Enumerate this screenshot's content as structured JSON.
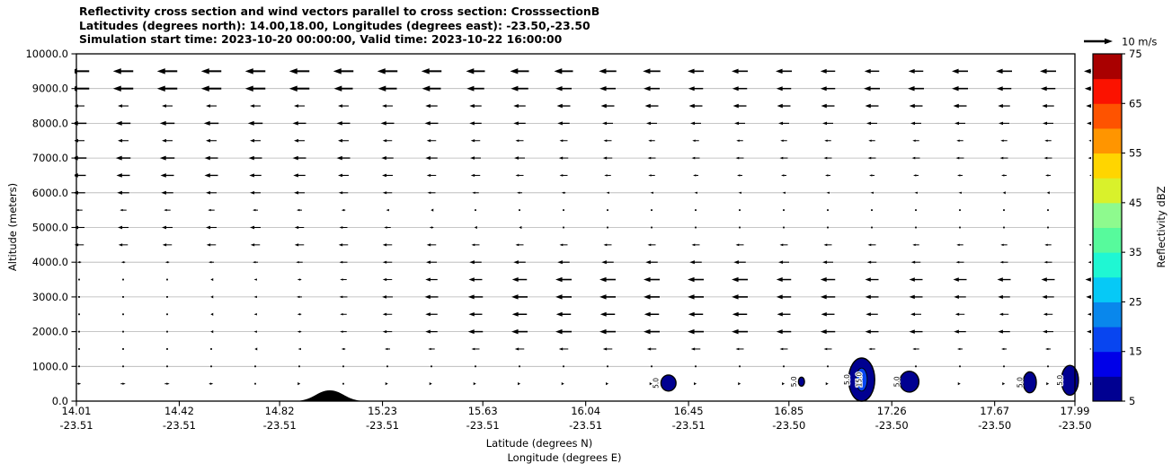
{
  "title": {
    "line1": "Reflectivity cross section and wind vectors parallel to cross section: CrosssectionB",
    "line2": "Latitudes (degrees north): 14.00,18.00, Longitudes (degrees east): -23.50,-23.50",
    "line3": "Simulation start time: 2023-10-20 00:00:00, Valid time: 2023-10-22 16:00:00"
  },
  "axes": {
    "ylabel": "Altitude (meters)",
    "xlabel_line1": "Latitude (degrees N)",
    "xlabel_line2": "Longitude (degrees E)",
    "y_ticks": [
      "0.0",
      "1000.0",
      "2000.0",
      "3000.0",
      "4000.0",
      "5000.0",
      "6000.0",
      "7000.0",
      "8000.0",
      "9000.0",
      "10000.0"
    ],
    "x_ticks": [
      {
        "lat": "14.01",
        "lon": "-23.51"
      },
      {
        "lat": "14.42",
        "lon": "-23.51"
      },
      {
        "lat": "14.82",
        "lon": "-23.51"
      },
      {
        "lat": "15.23",
        "lon": "-23.51"
      },
      {
        "lat": "15.63",
        "lon": "-23.51"
      },
      {
        "lat": "16.04",
        "lon": "-23.51"
      },
      {
        "lat": "16.45",
        "lon": "-23.51"
      },
      {
        "lat": "16.85",
        "lon": "-23.50"
      },
      {
        "lat": "17.26",
        "lon": "-23.50"
      },
      {
        "lat": "17.67",
        "lon": "-23.50"
      },
      {
        "lat": "17.99",
        "lon": "-23.50"
      }
    ]
  },
  "quiver_key": {
    "label": "10 m/s",
    "speed_ms": 10
  },
  "colorbar": {
    "label": "Reflectivity dBZ",
    "tick_values": [
      5,
      15,
      25,
      35,
      45,
      55,
      65,
      75
    ],
    "level_min": 5,
    "level_max": 75,
    "level_step": 5,
    "colors_low_to_high": [
      "#000091",
      "#0000e8",
      "#0845f0",
      "#0987ec",
      "#06c9f6",
      "#1ff7d3",
      "#57fa9c",
      "#8efa8e",
      "#d9f12b",
      "#ffd500",
      "#ff9500",
      "#fe5300",
      "#fb1200",
      "#a90000"
    ]
  },
  "chart_data": {
    "type": "quiver+contour vertical cross-section",
    "x_range_lat": [
      14.01,
      17.99
    ],
    "y_range_m": [
      0,
      10000
    ],
    "grid_interval_m": 1000,
    "wind_vectors": {
      "pixels_per_ms": 3,
      "altitudes_m": [
        9500,
        9000,
        8500,
        8000,
        7500,
        7000,
        6500,
        6000,
        5500,
        5000,
        4500,
        4000,
        3500,
        3000,
        2500,
        2000,
        1500,
        1000,
        500
      ],
      "u_ms": [
        [
          -7.5,
          -7.5,
          -7.5,
          -7.5,
          -7.5,
          -7.5,
          -7.5,
          -7.5,
          -7.5,
          -7,
          -7,
          -7,
          -6.5,
          -6.5,
          -6,
          -6,
          -6,
          -5.5,
          -5.5,
          -5.5,
          -6,
          -6,
          -6,
          -6
        ],
        [
          -7.5,
          -7.5,
          -7.5,
          -7.5,
          -7.5,
          -7.5,
          -7,
          -7,
          -7,
          -6.5,
          -6.5,
          -6,
          -6,
          -6,
          -5.5,
          -5.5,
          -5.5,
          -5.5,
          -6,
          -6,
          -6,
          -5.5,
          -5.5,
          -5.5
        ],
        [
          -4,
          -4,
          -4,
          -4,
          -4,
          -4,
          -4,
          -4,
          -4.5,
          -4.5,
          -4.5,
          -5,
          -5,
          -5,
          -5,
          -5,
          -5,
          -5,
          -5,
          -5,
          -5,
          -4.5,
          -4.5,
          -4.5
        ],
        [
          -5.5,
          -5.5,
          -5.5,
          -5.5,
          -5.5,
          -5,
          -5,
          -5,
          -5,
          -4.5,
          -4.5,
          -4.5,
          -4,
          -4,
          -4,
          -4,
          -4,
          -4,
          -4,
          -4,
          -4,
          -4,
          -4,
          -4
        ],
        [
          -4,
          -4,
          -4,
          -4,
          -4,
          -4,
          -4,
          -3.5,
          -3.5,
          -3.5,
          -3,
          -3,
          -3,
          -2.5,
          -2.5,
          -2.5,
          -2.5,
          -2.5,
          -2.5,
          -2.5,
          -2.5,
          -2.5,
          -2.5,
          -2.5
        ],
        [
          -5.5,
          -5.5,
          -5.5,
          -5,
          -5,
          -5,
          -5,
          -4.5,
          -4.5,
          -4,
          -4,
          -3.5,
          -3.5,
          -3,
          -3,
          -3,
          -3,
          -3,
          -3,
          -3,
          -3,
          -3,
          -3,
          -3
        ],
        [
          -5,
          -5,
          -5,
          -5,
          -4.5,
          -4.5,
          -4,
          -4,
          -3.5,
          -3.5,
          -3,
          -3,
          -2.5,
          -2.5,
          -2,
          -2,
          -2,
          -2,
          -2,
          -2,
          -2,
          -2,
          -2,
          -2
        ],
        [
          -4.5,
          -4.5,
          -4.5,
          -4,
          -4,
          -4,
          -3.5,
          -3.5,
          -3,
          -2.5,
          -2,
          -1.5,
          -1,
          -1,
          -1,
          -1,
          -1,
          -1,
          -1,
          -1,
          -1,
          -0.8,
          -0.8,
          -0.8
        ],
        [
          -2.5,
          -2.5,
          -2.5,
          -2.5,
          -2,
          -2,
          -1.5,
          -1,
          -0.5,
          -0.3,
          -0.3,
          -0.3,
          -0.3,
          -0.3,
          -0.3,
          -0.3,
          -0.3,
          -0.3,
          -0.3,
          -0.3,
          -0.3,
          -0.3,
          -0.3,
          -0.3
        ],
        [
          -4,
          -4,
          -4,
          -4,
          -4,
          -3.5,
          -3,
          -2.5,
          -1.5,
          -0.8,
          -0.4,
          -0.3,
          -0.3,
          -0.3,
          -0.3,
          -0.3,
          -0.3,
          -0.3,
          -0.3,
          -0.3,
          -0.3,
          -0.3,
          -0.3,
          -0.3
        ],
        [
          -3.5,
          -3.5,
          -3.5,
          -3.5,
          -3.5,
          -3.5,
          -3.5,
          -3.5,
          -3.5,
          -3,
          -3,
          -3,
          -3,
          -3,
          -3,
          -3,
          -3,
          -3,
          -3,
          -2.5,
          -2.5,
          -2.5,
          -2.5,
          -2.5
        ],
        [
          -1.5,
          -1.5,
          -1.5,
          -2,
          -2,
          -2.5,
          -3,
          -3.5,
          -4,
          -4.5,
          -4.5,
          -4.5,
          -4.5,
          -4.5,
          -4.5,
          -4.5,
          -4,
          -4,
          -3.5,
          -3.5,
          -3,
          -3,
          -3,
          -3
        ],
        [
          -0.2,
          -0.2,
          -0.3,
          -0.5,
          -1,
          -1.5,
          -2.5,
          -3.5,
          -4.5,
          -5,
          -5.5,
          -6,
          -6,
          -6,
          -6,
          -6,
          -5.5,
          -5.5,
          -5,
          -5,
          -5,
          -5,
          -5,
          -5
        ],
        [
          -0.2,
          -0.2,
          -0.3,
          -0.5,
          -1,
          -2,
          -3,
          -4,
          -5,
          -5.5,
          -6,
          -6,
          -6,
          -6,
          -6,
          -6,
          -5.5,
          -5.5,
          -5,
          -5,
          -4.5,
          -4.5,
          -4.5,
          -4.5
        ],
        [
          -0.2,
          -0.2,
          -0.3,
          -0.5,
          -1,
          -1.5,
          -2.5,
          -3.5,
          -4.5,
          -5,
          -5.5,
          -5.5,
          -5.5,
          -5.5,
          -5.5,
          -5.5,
          -5,
          -5,
          -4.5,
          -4,
          -3.5,
          -3.5,
          -3.5,
          -3.5
        ],
        [
          -0.3,
          -0.3,
          -0.3,
          -0.5,
          -1,
          -1.5,
          -2.5,
          -3.5,
          -4.5,
          -5.5,
          -6,
          -6,
          -6,
          -6,
          -6,
          -6,
          -5.5,
          -5.5,
          -5,
          -5,
          -4.5,
          -4.5,
          -4,
          -4
        ],
        [
          -0.2,
          -0.2,
          -0.2,
          -0.3,
          -0.5,
          -1,
          -1.5,
          -2,
          -2.5,
          -3,
          -3.5,
          -3.5,
          -3.5,
          -3.5,
          -3.5,
          -3,
          -3,
          -3,
          -2.5,
          -2.5,
          -2,
          -2,
          -2,
          -2
        ],
        [
          -0.2,
          -0.2,
          -0.2,
          -0.2,
          -0.2,
          -0.2,
          -0.2,
          -0.2,
          -0.2,
          -0.2,
          0.2,
          0.2,
          0.2,
          0.2,
          0.3,
          0.3,
          0.3,
          0.3,
          0.2,
          0.2,
          0.2,
          0.2,
          0.2,
          0.2
        ],
        [
          1.5,
          1.8,
          1.8,
          1.5,
          0.3,
          0.8,
          0.3,
          0.5,
          0.5,
          0.5,
          0.7,
          0.5,
          0.7,
          0.5,
          0.7,
          0.8,
          0.7,
          0.5,
          0.3,
          0.3,
          0.5,
          0.8,
          0.8,
          0.8
        ]
      ]
    },
    "reflectivity_cells": [
      {
        "lat": 16.37,
        "alt_m": 520,
        "rx_deg": 0.03,
        "ry_m": 230,
        "dbz": 5,
        "label": "5.0",
        "label_lat": 16.33
      },
      {
        "lat": 16.9,
        "alt_m": 560,
        "rx_deg": 0.012,
        "ry_m": 130,
        "dbz": 5,
        "label": "5.0",
        "label_lat": 16.88
      },
      {
        "lat": 17.14,
        "alt_m": 620,
        "rx_deg": 0.052,
        "ry_m": 620,
        "dbz": 5,
        "label": "5.0",
        "label_lat": 17.09,
        "inner": {
          "rx_deg": 0.022,
          "ry_m": 330,
          "dbz": 15,
          "label": "15.0"
        }
      },
      {
        "lat": 17.33,
        "alt_m": 560,
        "rx_deg": 0.038,
        "ry_m": 300,
        "dbz": 5,
        "label": "5.0",
        "label_lat": 17.29
      },
      {
        "lat": 17.81,
        "alt_m": 540,
        "rx_deg": 0.026,
        "ry_m": 300,
        "dbz": 5,
        "label": "5.0",
        "label_lat": 17.78
      },
      {
        "lat": 17.97,
        "alt_m": 600,
        "rx_deg": 0.034,
        "ry_m": 430,
        "dbz": 5,
        "label": "5.0",
        "label_lat": 17.94
      }
    ],
    "terrain": {
      "center_lat": 15.02,
      "half_width_deg": 0.145,
      "peak_m": 310
    }
  }
}
